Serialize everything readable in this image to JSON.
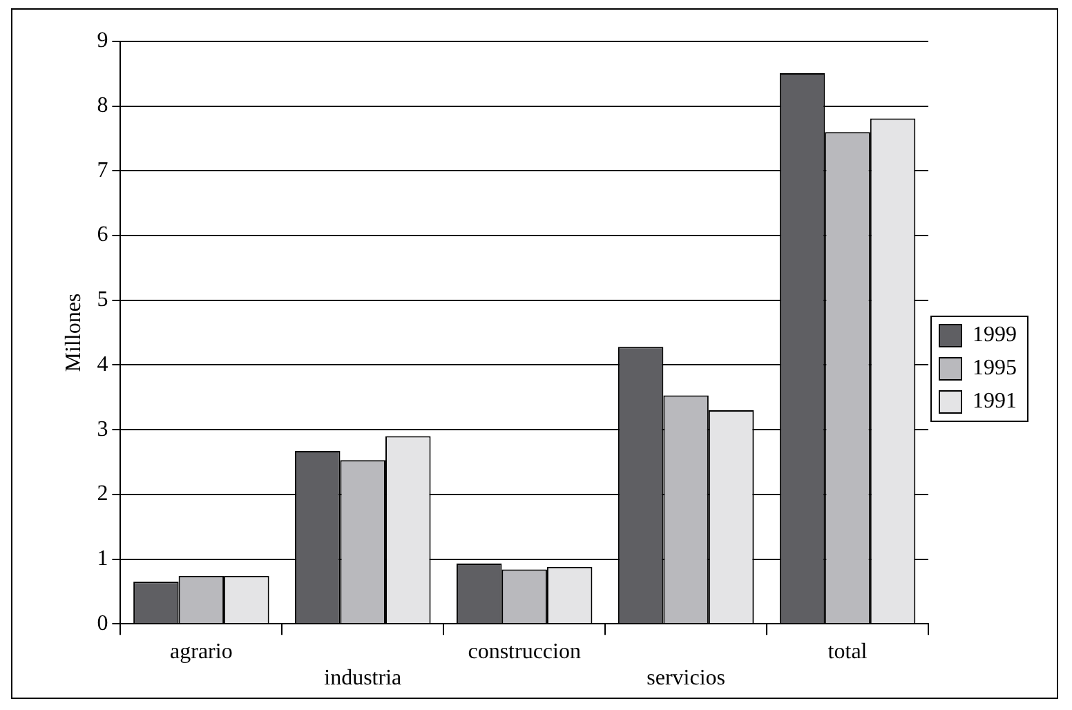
{
  "chart_data": {
    "type": "bar",
    "ylabel": "Millones",
    "categories": [
      "agrario",
      "industria",
      "construccion",
      "servicios",
      "total"
    ],
    "series": [
      {
        "name": "1999",
        "color": "#5f5f63",
        "values": [
          0.65,
          2.67,
          0.93,
          4.28,
          8.51
        ]
      },
      {
        "name": "1995",
        "color": "#b9b9bd",
        "values": [
          0.74,
          2.53,
          0.84,
          3.53,
          7.6
        ]
      },
      {
        "name": "1991",
        "color": "#e4e4e6",
        "values": [
          0.74,
          2.9,
          0.88,
          3.3,
          7.81
        ]
      }
    ],
    "ylim": [
      0,
      9
    ],
    "yticks": [
      0,
      1,
      2,
      3,
      4,
      5,
      6,
      7,
      8,
      9
    ],
    "grid": "y",
    "legend": "right"
  }
}
